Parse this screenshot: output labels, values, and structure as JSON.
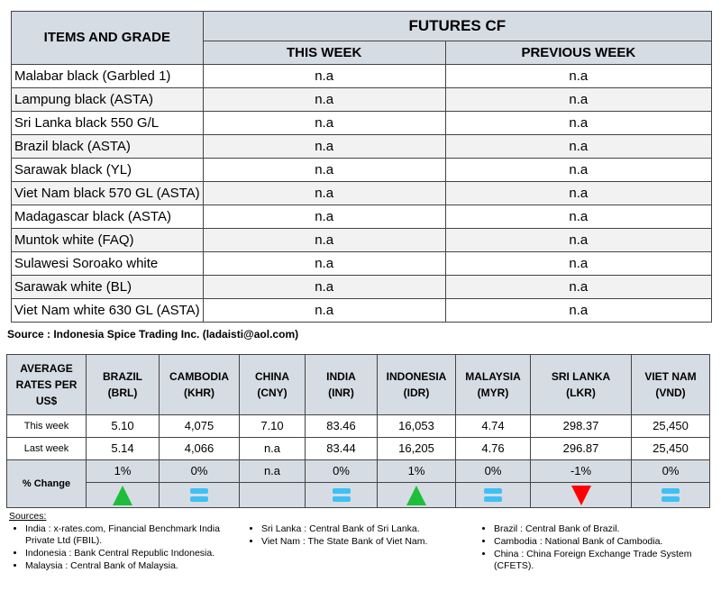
{
  "futures": {
    "header_items": "ITEMS AND GRADE",
    "header_group": "FUTURES CF",
    "header_this": "THIS WEEK",
    "header_prev": "PREVIOUS WEEK",
    "rows": [
      {
        "item": "Malabar black (Garbled 1)",
        "this": "n.a",
        "prev": "n.a"
      },
      {
        "item": "Lampung black (ASTA)",
        "this": "n.a",
        "prev": "n.a"
      },
      {
        "item": "Sri Lanka black 550 G/L",
        "this": "n.a",
        "prev": "n.a"
      },
      {
        "item": "Brazil black (ASTA)",
        "this": "n.a",
        "prev": "n.a"
      },
      {
        "item": "Sarawak black (YL)",
        "this": "n.a",
        "prev": "n.a"
      },
      {
        "item": "Viet Nam black 570 GL (ASTA)",
        "this": "n.a",
        "prev": "n.a"
      },
      {
        "item": "Madagascar black (ASTA)",
        "this": "n.a",
        "prev": "n.a"
      },
      {
        "item": "Muntok white (FAQ)",
        "this": "n.a",
        "prev": "n.a"
      },
      {
        "item": "Sulawesi Soroako white",
        "this": "n.a",
        "prev": "n.a"
      },
      {
        "item": "Sarawak  white (BL)",
        "this": "n.a",
        "prev": "n.a"
      },
      {
        "item": "Viet Nam white 630 GL (ASTA)",
        "this": "n.a",
        "prev": "n.a"
      }
    ],
    "source": "Source : Indonesia Spice Trading Inc. (ladaisti@aol.com)"
  },
  "rates": {
    "corner": "AVERAGE RATES PER US$",
    "this_label": "This week",
    "last_label": "Last week",
    "change_label": "% Change",
    "columns": [
      {
        "country": "BRAZIL",
        "code": "(BRL)",
        "this": "5.10",
        "last": "5.14",
        "change": "1%",
        "trend": "up"
      },
      {
        "country": "CAMBODIA",
        "code": "(KHR)",
        "this": "4,075",
        "last": "4,066",
        "change": "0%",
        "trend": "equal"
      },
      {
        "country": "CHINA",
        "code": "(CNY)",
        "this": "7.10",
        "last": "n.a",
        "change": "n.a",
        "trend": "none"
      },
      {
        "country": "INDIA",
        "code": "(INR)",
        "this": "83.46",
        "last": "83.44",
        "change": "0%",
        "trend": "equal"
      },
      {
        "country": "INDONESIA",
        "code": "(IDR)",
        "this": "16,053",
        "last": "16,205",
        "change": "1%",
        "trend": "up"
      },
      {
        "country": "MALAYSIA",
        "code": "(MYR)",
        "this": "4.74",
        "last": "4.76",
        "change": "0%",
        "trend": "equal"
      },
      {
        "country": "SRI LANKA",
        "code": "(LKR)",
        "this": "298.37",
        "last": "296.87",
        "change": "-1%",
        "trend": "down"
      },
      {
        "country": "VIET NAM",
        "code": "(VND)",
        "this": "25,450",
        "last": "25,450",
        "change": "0%",
        "trend": "equal"
      }
    ],
    "colors": {
      "up": "#1ebe3c",
      "down": "#ff0000",
      "equal": "#3ec0f5",
      "header": "#d6dce4"
    }
  },
  "sources": {
    "title": "Sources:",
    "col1": [
      "India : x-rates.com, Financial Benchmark India Private Ltd (FBIL).",
      "Indonesia : Bank Central Republic Indonesia.",
      "Malaysia : Central Bank of Malaysia."
    ],
    "col2": [
      "Sri Lanka : Central Bank of Sri Lanka.",
      "Viet Nam : The State Bank of Viet Nam."
    ],
    "col3": [
      "Brazil :  Central Bank of Brazil.",
      "Cambodia : National Bank of Cambodia.",
      "China : China Foreign Exchange Trade System (CFETS)."
    ]
  }
}
